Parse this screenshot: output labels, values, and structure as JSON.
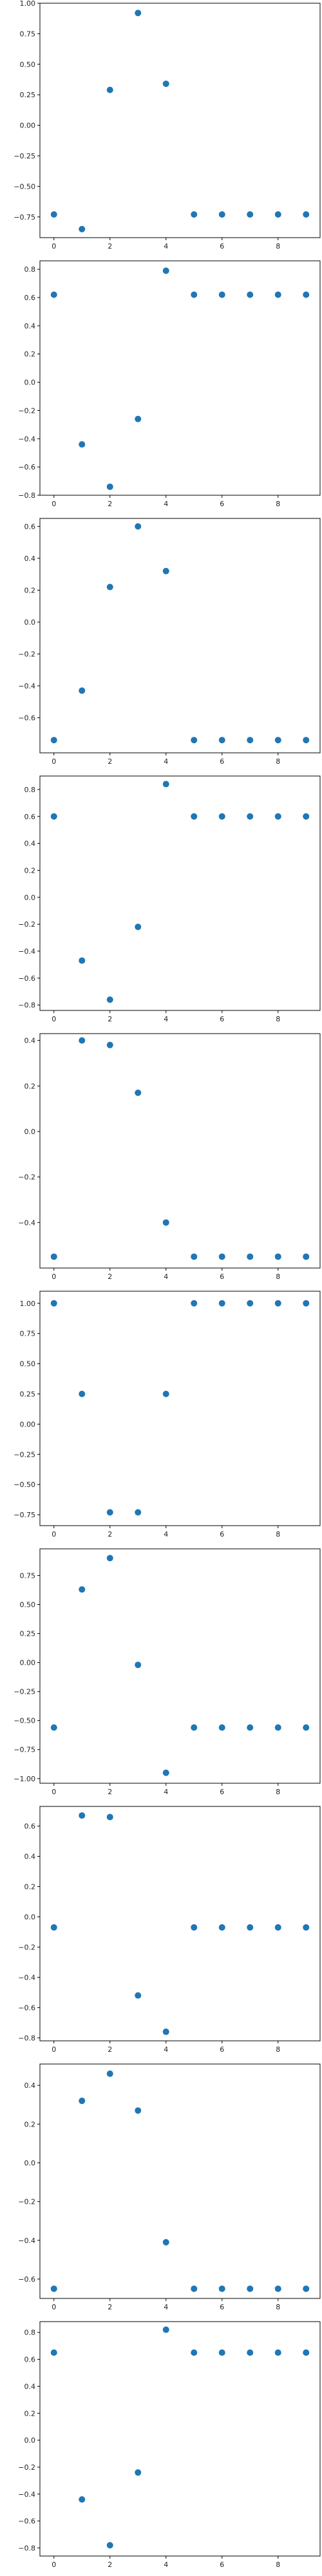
{
  "figure": {
    "marker_color": "#1f77b4",
    "xticks": [
      0,
      2,
      4,
      6,
      8
    ],
    "xlim": [
      -0.5,
      9.5
    ]
  },
  "chart_data": [
    {
      "type": "scatter",
      "x": [
        0,
        1,
        2,
        3,
        4,
        5,
        6,
        7,
        8,
        9
      ],
      "y": [
        -0.73,
        -0.85,
        0.29,
        0.92,
        0.34,
        -0.73,
        -0.73,
        -0.73,
        -0.73,
        -0.73
      ],
      "ylim": [
        -0.92,
        1.0
      ],
      "yticks": [
        -0.75,
        -0.5,
        -0.25,
        0.0,
        0.25,
        0.5,
        0.75,
        1.0
      ],
      "ytick_labels": [
        "−0.75",
        "−0.50",
        "−0.25",
        "0.00",
        "0.25",
        "0.50",
        "0.75",
        "1.00"
      ]
    },
    {
      "type": "scatter",
      "x": [
        0,
        1,
        2,
        3,
        4,
        5,
        6,
        7,
        8,
        9
      ],
      "y": [
        0.62,
        -0.44,
        -0.74,
        -0.26,
        0.79,
        0.62,
        0.62,
        0.62,
        0.62,
        0.62
      ],
      "ylim": [
        -0.8,
        0.86
      ],
      "yticks": [
        -0.8,
        -0.6,
        -0.4,
        -0.2,
        0.0,
        0.2,
        0.4,
        0.6,
        0.8
      ],
      "ytick_labels": [
        "−0.8",
        "−0.6",
        "−0.4",
        "−0.2",
        "0.0",
        "0.2",
        "0.4",
        "0.6",
        "0.8"
      ]
    },
    {
      "type": "scatter",
      "x": [
        0,
        1,
        2,
        3,
        4,
        5,
        6,
        7,
        8,
        9
      ],
      "y": [
        -0.74,
        -0.43,
        0.22,
        0.6,
        0.32,
        -0.74,
        -0.74,
        -0.74,
        -0.74,
        -0.74
      ],
      "ylim": [
        -0.82,
        0.65
      ],
      "yticks": [
        -0.6,
        -0.4,
        -0.2,
        0.0,
        0.2,
        0.4,
        0.6
      ],
      "ytick_labels": [
        "−0.6",
        "−0.4",
        "−0.2",
        "0.0",
        "0.2",
        "0.4",
        "0.6"
      ]
    },
    {
      "type": "scatter",
      "x": [
        0,
        1,
        2,
        3,
        4,
        5,
        6,
        7,
        8,
        9
      ],
      "y": [
        0.6,
        -0.47,
        -0.76,
        -0.22,
        0.84,
        0.6,
        0.6,
        0.6,
        0.6,
        0.6
      ],
      "ylim": [
        -0.84,
        0.9
      ],
      "yticks": [
        -0.8,
        -0.6,
        -0.4,
        -0.2,
        0.0,
        0.2,
        0.4,
        0.6,
        0.8
      ],
      "ytick_labels": [
        "−0.8",
        "−0.6",
        "−0.4",
        "−0.2",
        "0.0",
        "0.2",
        "0.4",
        "0.6",
        "0.8"
      ]
    },
    {
      "type": "scatter",
      "x": [
        0,
        1,
        2,
        3,
        4,
        5,
        6,
        7,
        8,
        9
      ],
      "y": [
        -0.55,
        0.4,
        0.38,
        0.17,
        -0.4,
        -0.55,
        -0.55,
        -0.55,
        -0.55,
        -0.55
      ],
      "ylim": [
        -0.6,
        0.43
      ],
      "yticks": [
        -0.4,
        -0.2,
        0.0,
        0.2,
        0.4
      ],
      "ytick_labels": [
        "−0.4",
        "−0.2",
        "0.0",
        "0.2",
        "0.4"
      ]
    },
    {
      "type": "scatter",
      "x": [
        0,
        1,
        2,
        3,
        4,
        5,
        6,
        7,
        8,
        9
      ],
      "y": [
        1.0,
        0.25,
        -0.73,
        -0.73,
        0.25,
        1.0,
        1.0,
        1.0,
        1.0,
        1.0
      ],
      "ylim": [
        -0.84,
        1.1
      ],
      "yticks": [
        -0.75,
        -0.5,
        -0.25,
        0.0,
        0.25,
        0.5,
        0.75,
        1.0
      ],
      "ytick_labels": [
        "−0.75",
        "−0.50",
        "−0.25",
        "0.00",
        "0.25",
        "0.50",
        "0.75",
        "1.00"
      ]
    },
    {
      "type": "scatter",
      "x": [
        0,
        1,
        2,
        3,
        4,
        5,
        6,
        7,
        8,
        9
      ],
      "y": [
        -0.56,
        0.63,
        0.9,
        -0.02,
        -0.95,
        -0.56,
        -0.56,
        -0.56,
        -0.56,
        -0.56
      ],
      "ylim": [
        -1.04,
        0.98
      ],
      "yticks": [
        -1.0,
        -0.75,
        -0.5,
        -0.25,
        0.0,
        0.25,
        0.5,
        0.75
      ],
      "ytick_labels": [
        "−1.00",
        "−0.75",
        "−0.50",
        "−0.25",
        "0.00",
        "0.25",
        "0.50",
        "0.75"
      ]
    },
    {
      "type": "scatter",
      "x": [
        0,
        1,
        2,
        3,
        4,
        5,
        6,
        7,
        8,
        9
      ],
      "y": [
        -0.07,
        0.67,
        0.66,
        -0.52,
        -0.76,
        -0.07,
        -0.07,
        -0.07,
        -0.07,
        -0.07
      ],
      "ylim": [
        -0.82,
        0.73
      ],
      "yticks": [
        -0.8,
        -0.6,
        -0.4,
        -0.2,
        0.0,
        0.2,
        0.4,
        0.6
      ],
      "ytick_labels": [
        "−0.8",
        "−0.6",
        "−0.4",
        "−0.2",
        "0.0",
        "0.2",
        "0.4",
        "0.6"
      ]
    },
    {
      "type": "scatter",
      "x": [
        0,
        1,
        2,
        3,
        4,
        5,
        6,
        7,
        8,
        9
      ],
      "y": [
        -0.65,
        0.32,
        0.46,
        0.27,
        -0.41,
        -0.65,
        -0.65,
        -0.65,
        -0.65,
        -0.65
      ],
      "ylim": [
        -0.7,
        0.51
      ],
      "yticks": [
        -0.6,
        -0.4,
        -0.2,
        0.0,
        0.2,
        0.4
      ],
      "ytick_labels": [
        "−0.6",
        "−0.4",
        "−0.2",
        "0.0",
        "0.2",
        "0.4"
      ]
    },
    {
      "type": "scatter",
      "x": [
        0,
        1,
        2,
        3,
        4,
        5,
        6,
        7,
        8,
        9
      ],
      "y": [
        0.65,
        -0.44,
        -0.78,
        -0.24,
        0.82,
        0.65,
        0.65,
        0.65,
        0.65,
        0.65
      ],
      "ylim": [
        -0.86,
        0.88
      ],
      "yticks": [
        -0.8,
        -0.6,
        -0.4,
        -0.2,
        0.0,
        0.2,
        0.4,
        0.6,
        0.8
      ],
      "ytick_labels": [
        "−0.8",
        "−0.6",
        "−0.4",
        "−0.2",
        "0.0",
        "0.2",
        "0.4",
        "0.6",
        "0.8"
      ]
    }
  ]
}
